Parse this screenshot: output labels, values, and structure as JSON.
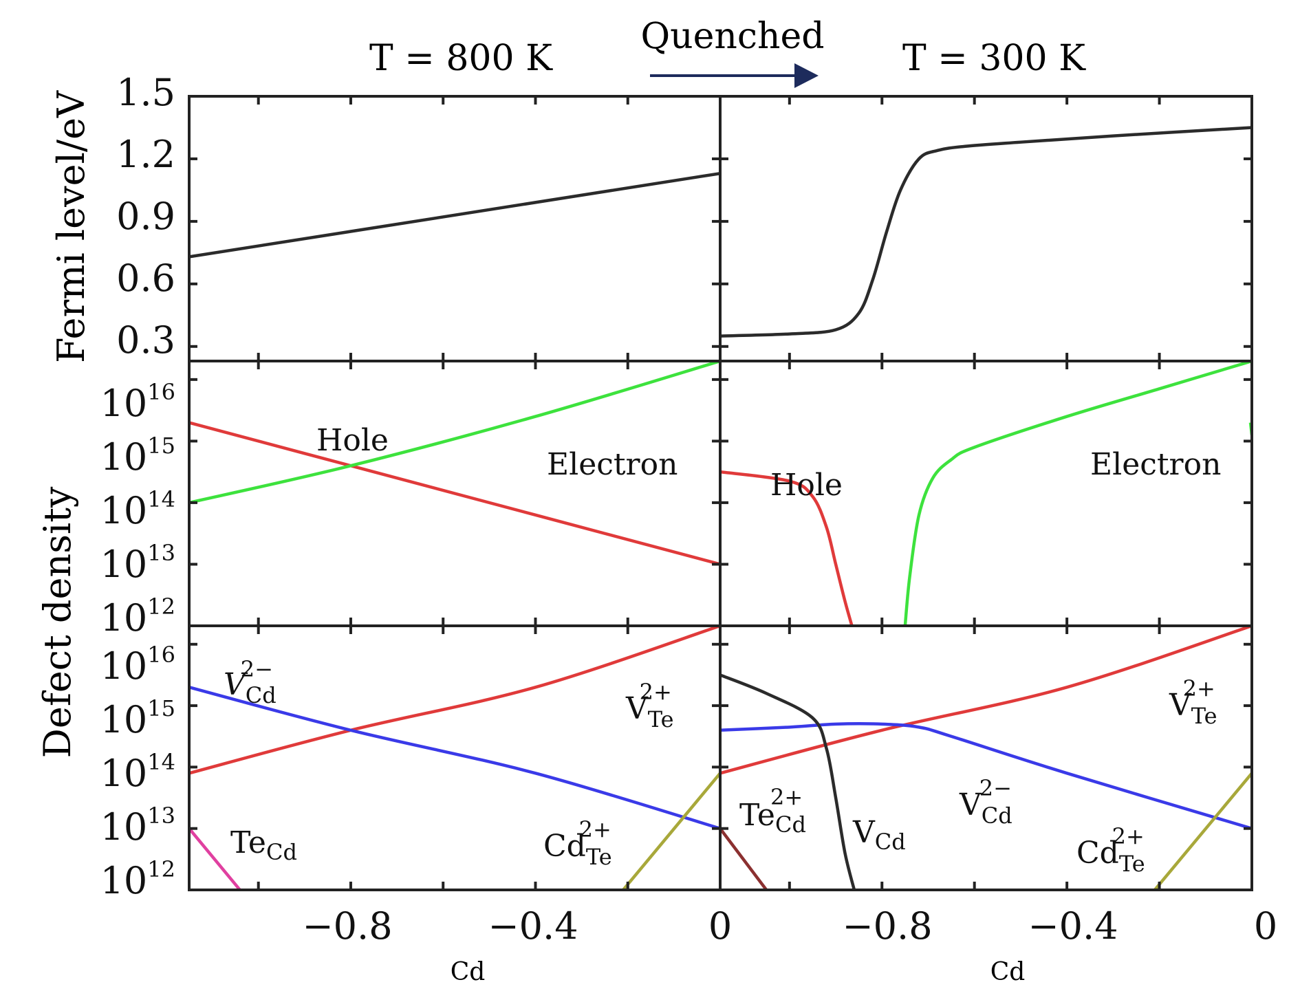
{
  "chart_data": {
    "type": "line",
    "headers": {
      "left_title": "T = 800 K",
      "right_title": "T = 300 K",
      "arrow_label": "Quenched"
    },
    "y_labels": {
      "fermi": "Fermi level/eV",
      "density": "Defect density"
    },
    "x_axis": {
      "label": "Cd",
      "ticks": [
        "−0.8",
        "−0.4",
        "0"
      ],
      "range": [
        -1.15,
        0
      ]
    },
    "fermi_axis": {
      "ticks": [
        "1.5",
        "1.2",
        "0.9",
        "0.6",
        "0.3"
      ],
      "ylim": [
        0.23,
        1.5
      ]
    },
    "density_axis": {
      "ticks": [
        {
          "base": "10",
          "exp": "16"
        },
        {
          "base": "10",
          "exp": "15"
        },
        {
          "base": "10",
          "exp": "14"
        },
        {
          "base": "10",
          "exp": "13"
        },
        {
          "base": "10",
          "exp": "12"
        }
      ],
      "log_ylim": [
        12,
        16.3
      ]
    },
    "panels": {
      "fermi_800": {
        "series": [
          {
            "name": "Fermi level",
            "color": "#2b2b2b",
            "x": [
              -1.15,
              0
            ],
            "y": [
              0.73,
              1.13
            ]
          }
        ]
      },
      "fermi_300": {
        "series": [
          {
            "name": "Fermi level",
            "color": "#2b2b2b",
            "x": [
              -1.15,
              -1.0,
              -0.9,
              -0.85,
              -0.82,
              -0.79,
              -0.76,
              -0.72,
              -0.68,
              -0.62,
              -0.5,
              -0.3,
              0
            ],
            "y": [
              0.35,
              0.36,
              0.38,
              0.46,
              0.62,
              0.85,
              1.05,
              1.2,
              1.24,
              1.26,
              1.28,
              1.31,
              1.35
            ]
          }
        ]
      },
      "carrier_800": {
        "labels": {
          "hole": "Hole",
          "electron": "Electron"
        },
        "series": [
          {
            "name": "Hole",
            "color": "#e03a3a",
            "x": [
              -1.15,
              -0.8,
              -0.4,
              0
            ],
            "y": [
              15.3,
              14.6,
              13.8,
              13.0
            ]
          },
          {
            "name": "Electron",
            "color": "#3de23d",
            "x": [
              -1.15,
              -0.8,
              -0.4,
              0
            ],
            "y": [
              14.0,
              14.6,
              15.4,
              16.3
            ]
          }
        ]
      },
      "carrier_300": {
        "labels": {
          "hole": "Hole",
          "electron": "Electron"
        },
        "series": [
          {
            "name": "Hole",
            "color": "#e03a3a",
            "x": [
              -1.15,
              -1.0,
              -0.95,
              -0.92,
              -0.9,
              -0.88,
              -0.865
            ],
            "y": [
              14.5,
              14.35,
              14.1,
              13.6,
              13.0,
              12.4,
              12.0
            ]
          },
          {
            "name": "Electron",
            "color": "#3de23d",
            "x": [
              -0.75,
              -0.74,
              -0.72,
              -0.69,
              -0.65,
              -0.6,
              -0.4,
              -0.2,
              0
            ],
            "y": [
              12.0,
              12.8,
              13.8,
              14.4,
              14.7,
              14.9,
              15.4,
              15.85,
              16.3
            ]
          },
          {
            "name": "Electron",
            "color": "#3de23d",
            "x": [
              0,
              -0.003
            ],
            "y": [
              15.1,
              15.3
            ]
          }
        ]
      },
      "defect_800": {
        "labels": {
          "vcd": {
            "base": "V",
            "sub": "Cd",
            "sup": "2−"
          },
          "vte": {
            "base": "V",
            "sub": "Te",
            "sup": "2+"
          },
          "tecd": {
            "base": "Te",
            "sub": "Cd",
            "sup": ""
          },
          "cdte": {
            "base": "Cd",
            "sub": "Te",
            "sup": "2+"
          }
        },
        "series": [
          {
            "name": "V_Te 2+",
            "color": "#e03a3a",
            "x": [
              -1.15,
              -0.8,
              -0.4,
              0
            ],
            "y": [
              13.9,
              14.6,
              15.3,
              16.3
            ]
          },
          {
            "name": "V_Cd 2−",
            "color": "#3a3ae8",
            "x": [
              -1.15,
              -0.8,
              -0.4,
              0
            ],
            "y": [
              15.3,
              14.6,
              13.9,
              13.0
            ]
          },
          {
            "name": "Te_Cd",
            "color": "#e040a0",
            "x": [
              -1.15,
              -1.04
            ],
            "y": [
              13.0,
              12.0
            ]
          },
          {
            "name": "Cd_Te 2+",
            "color": "#a8a83a",
            "x": [
              -0.21,
              0
            ],
            "y": [
              12.0,
              13.9
            ]
          }
        ]
      },
      "defect_300": {
        "labels": {
          "vcd_charged": {
            "base": "V",
            "sub": "Cd",
            "sup": "2−"
          },
          "vte": {
            "base": "V",
            "sub": "Te",
            "sup": "2+"
          },
          "tecd": {
            "base": "Te",
            "sub": "Cd",
            "sup": "2+"
          },
          "vcd": {
            "base": "V",
            "sub": "Cd",
            "sup": ""
          },
          "cdte": {
            "base": "Cd",
            "sub": "Te",
            "sup": "2+"
          }
        },
        "series": [
          {
            "name": "V_Te 2+",
            "color": "#e03a3a",
            "x": [
              -1.15,
              -0.8,
              -0.4,
              0
            ],
            "y": [
              13.9,
              14.6,
              15.3,
              16.3
            ]
          },
          {
            "name": "V_Cd 2−",
            "color": "#3a3ae8",
            "x": [
              -1.15,
              -1.0,
              -0.9,
              -0.8,
              -0.72,
              -0.65,
              -0.4,
              0
            ],
            "y": [
              14.6,
              14.65,
              14.7,
              14.7,
              14.65,
              14.5,
              13.9,
              13.0
            ]
          },
          {
            "name": "V_Cd",
            "color": "#2b2b2b",
            "x": [
              -1.15,
              -1.05,
              -0.95,
              -0.92,
              -0.9,
              -0.88,
              -0.86
            ],
            "y": [
              15.5,
              15.2,
              14.8,
              14.3,
              13.5,
              12.6,
              12.0
            ]
          },
          {
            "name": "Te_Cd 2+",
            "color": "#8b3030",
            "x": [
              -1.15,
              -1.05
            ],
            "y": [
              13.0,
              12.0
            ]
          },
          {
            "name": "Cd_Te 2+",
            "color": "#a8a83a",
            "x": [
              -0.21,
              0
            ],
            "y": [
              12.0,
              13.9
            ]
          }
        ]
      }
    }
  }
}
